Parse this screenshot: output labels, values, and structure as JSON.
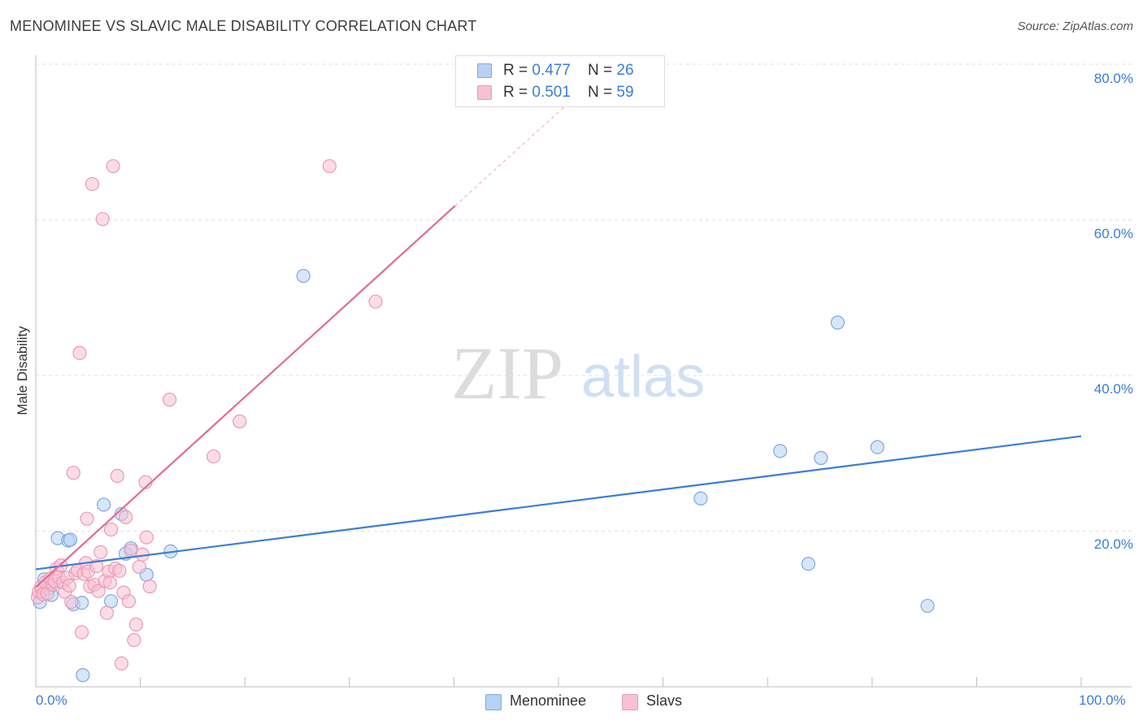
{
  "title": "MENOMINEE VS SLAVIC MALE DISABILITY CORRELATION CHART",
  "source": "Source: ZipAtlas.com",
  "watermark": {
    "zip": "ZIP",
    "atlas": "atlas"
  },
  "colors": {
    "blue": "#3b7dd8",
    "blue_fill": "#b7d2f3",
    "pink": "#e46a94",
    "pink_fill": "#f7c1d3",
    "grid": "#e2e2e2",
    "axis": "#bdbdbd"
  },
  "legend_top": [
    {
      "r_label": "R = ",
      "r_value": "0.477",
      "n_label": "N = ",
      "n_value": "26"
    },
    {
      "r_label": "R = ",
      "r_value": "0.501",
      "n_label": "N = ",
      "n_value": "59"
    }
  ],
  "legend_bottom": [
    "Menominee",
    "Slavs"
  ],
  "chart_data": {
    "type": "scatter",
    "title": "MENOMINEE VS SLAVIC MALE DISABILITY CORRELATION CHART",
    "xlabel": "",
    "ylabel": "Male Disability",
    "xlim": [
      0,
      100
    ],
    "ylim": [
      0,
      80
    ],
    "x_tick_labels": [
      "0.0%",
      "100.0%"
    ],
    "y_ticks": [
      20,
      40,
      60,
      80
    ],
    "y_tick_labels": [
      "20.0%",
      "40.0%",
      "60.0%",
      "80.0%"
    ],
    "grid": true,
    "legend_position": "top-center",
    "series": [
      {
        "name": "Menominee",
        "r": 0.477,
        "n": 26,
        "trend": {
          "x0": 0,
          "y0": 15.1,
          "x1": 100,
          "y1": 32.2
        },
        "points": [
          [
            0.4,
            10.9
          ],
          [
            0.6,
            12.3
          ],
          [
            0.8,
            13.8
          ],
          [
            1.3,
            12.7
          ],
          [
            1.5,
            11.8
          ],
          [
            2.1,
            19.1
          ],
          [
            3.1,
            18.8
          ],
          [
            3.3,
            18.9
          ],
          [
            3.6,
            10.6
          ],
          [
            4.4,
            10.8
          ],
          [
            4.5,
            1.5
          ],
          [
            6.5,
            23.4
          ],
          [
            7.2,
            11.0
          ],
          [
            8.2,
            22.2
          ],
          [
            8.6,
            17.1
          ],
          [
            9.1,
            17.8
          ],
          [
            12.9,
            17.4
          ],
          [
            10.6,
            14.4
          ],
          [
            25.6,
            52.8
          ],
          [
            63.6,
            24.2
          ],
          [
            71.2,
            30.3
          ],
          [
            73.9,
            15.8
          ],
          [
            75.1,
            29.4
          ],
          [
            76.7,
            46.8
          ],
          [
            80.5,
            30.8
          ],
          [
            85.3,
            10.4
          ]
        ]
      },
      {
        "name": "Slavs",
        "r": 0.501,
        "n": 59,
        "trend": {
          "x0": 0,
          "y0": 12.8,
          "x1": 40.1,
          "y1": 61.8
        },
        "trend_dashed": {
          "x0": 40.1,
          "y0": 61.8,
          "x1": 53.0,
          "y1": 77.5
        },
        "points": [
          [
            0.2,
            11.5
          ],
          [
            0.3,
            12.2
          ],
          [
            0.5,
            12.8
          ],
          [
            0.7,
            11.9
          ],
          [
            0.9,
            13.4
          ],
          [
            1.1,
            12.0
          ],
          [
            1.4,
            13.9
          ],
          [
            1.6,
            13.1
          ],
          [
            1.8,
            13.6
          ],
          [
            2.0,
            15.2
          ],
          [
            2.2,
            14.1
          ],
          [
            2.4,
            15.6
          ],
          [
            2.6,
            13.4
          ],
          [
            2.8,
            12.2
          ],
          [
            3.0,
            14.0
          ],
          [
            3.2,
            13.0
          ],
          [
            3.4,
            10.9
          ],
          [
            3.6,
            27.5
          ],
          [
            3.8,
            14.6
          ],
          [
            4.0,
            15.0
          ],
          [
            4.2,
            42.9
          ],
          [
            4.4,
            7.0
          ],
          [
            4.6,
            14.5
          ],
          [
            4.8,
            15.9
          ],
          [
            5.0,
            14.8
          ],
          [
            5.2,
            12.9
          ],
          [
            5.4,
            64.6
          ],
          [
            5.6,
            13.1
          ],
          [
            5.8,
            15.5
          ],
          [
            6.0,
            12.3
          ],
          [
            6.2,
            17.3
          ],
          [
            6.4,
            60.1
          ],
          [
            6.6,
            13.6
          ],
          [
            6.8,
            9.5
          ],
          [
            7.0,
            14.8
          ],
          [
            7.2,
            20.2
          ],
          [
            7.4,
            66.9
          ],
          [
            7.6,
            15.2
          ],
          [
            7.8,
            27.1
          ],
          [
            8.0,
            14.9
          ],
          [
            8.2,
            3.0
          ],
          [
            8.4,
            12.1
          ],
          [
            8.6,
            21.8
          ],
          [
            8.9,
            11.0
          ],
          [
            9.1,
            17.5
          ],
          [
            9.4,
            6.0
          ],
          [
            9.6,
            8.0
          ],
          [
            9.9,
            15.4
          ],
          [
            10.2,
            17.0
          ],
          [
            10.5,
            26.3
          ],
          [
            10.6,
            19.2
          ],
          [
            10.9,
            12.9
          ],
          [
            12.8,
            36.9
          ],
          [
            17.0,
            29.6
          ],
          [
            19.5,
            34.1
          ],
          [
            28.1,
            66.9
          ],
          [
            32.5,
            49.5
          ],
          [
            4.9,
            21.6
          ],
          [
            7.1,
            13.4
          ]
        ]
      }
    ]
  }
}
